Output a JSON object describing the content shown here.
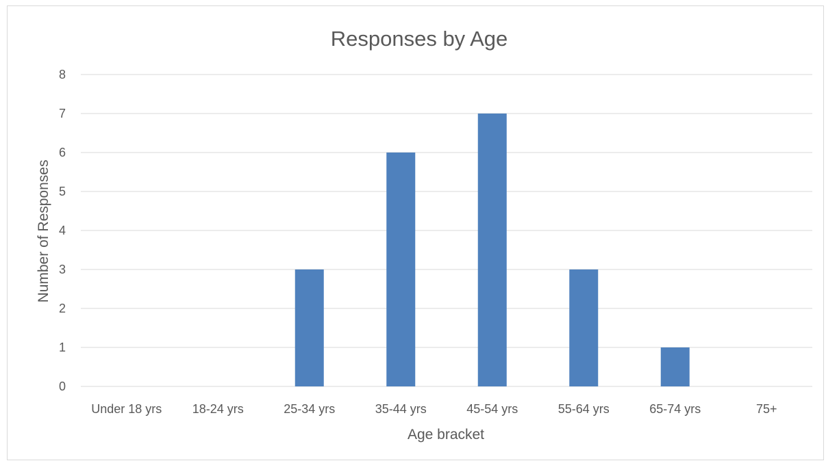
{
  "chart_data": {
    "type": "bar",
    "title": "Responses by Age",
    "xlabel": "Age bracket",
    "ylabel": "Number of Responses",
    "categories": [
      "Under 18 yrs",
      "18-24 yrs",
      "25-34 yrs",
      "35-44 yrs",
      "45-54 yrs",
      "55-64 yrs",
      "65-74 yrs",
      "75+"
    ],
    "values": [
      0,
      0,
      3,
      6,
      7,
      3,
      1,
      0
    ],
    "ylim": [
      0,
      8
    ],
    "yticks": [
      "0",
      "1",
      "2",
      "3",
      "4",
      "5",
      "6",
      "7",
      "8"
    ],
    "grid": true,
    "legend": "none",
    "colors": {
      "bar": "#4f81bd",
      "grid": "#d9d9d9",
      "text": "#595959"
    }
  }
}
